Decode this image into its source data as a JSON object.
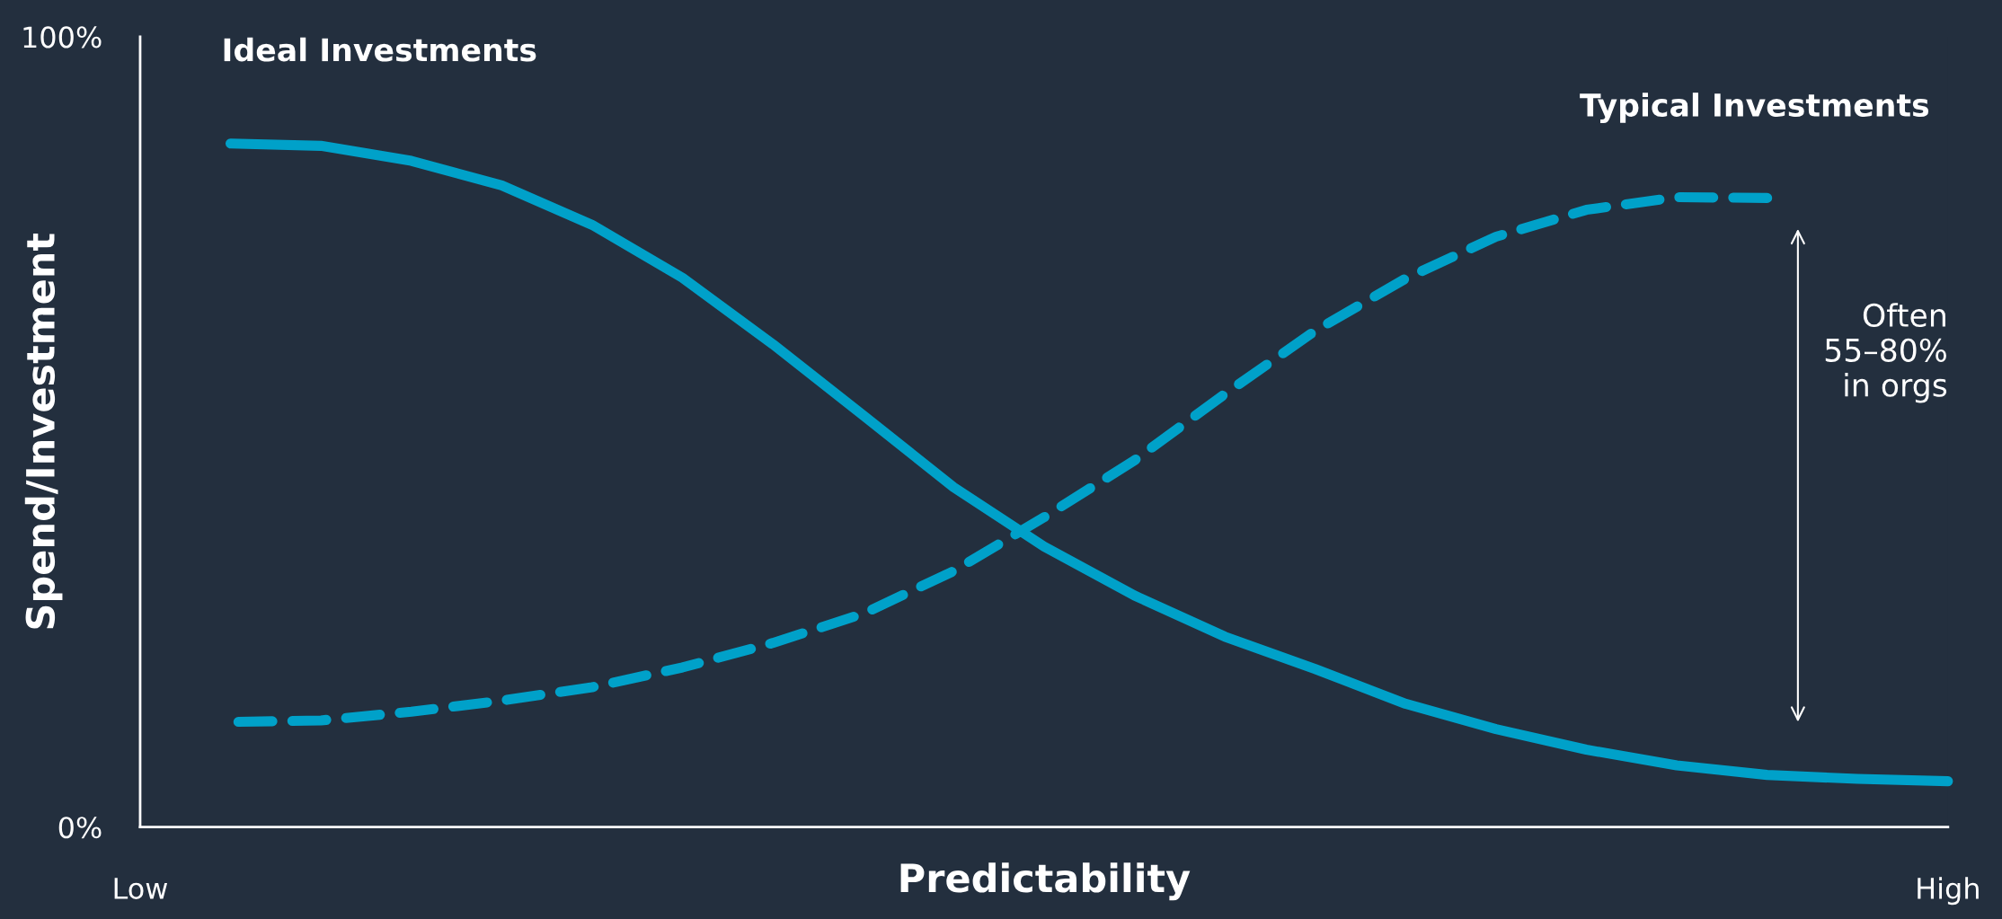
{
  "chart_data": {
    "type": "line",
    "xlabel": "Predictability",
    "ylabel": "Spend/Investment",
    "categories": [
      "Low",
      null,
      null,
      null,
      null,
      null,
      null,
      null,
      null,
      null,
      null,
      null,
      null,
      null,
      null,
      null,
      null,
      null,
      null,
      null,
      "High"
    ],
    "ylim": [
      0,
      100
    ],
    "yticks": [
      {
        "value": 0,
        "label": "0%"
      },
      {
        "value": 100,
        "label": "100%"
      }
    ],
    "grid": false,
    "legend": false,
    "marker": "none",
    "series": [
      {
        "name": "Ideal Investments",
        "color": "#00a1c9",
        "line_style": "solid",
        "values": [
          null,
          86.5,
          86.2,
          84.3,
          81.2,
          76.2,
          69.5,
          61.1,
          52.1,
          43.0,
          35.5,
          29.3,
          24.1,
          20.0,
          15.6,
          12.4,
          9.8,
          7.8,
          6.6,
          6.1,
          5.8
        ]
      },
      {
        "name": "Typical Investments",
        "color": "#00a1c9",
        "line_style": "dashed",
        "values": [
          null,
          13.3,
          13.5,
          14.6,
          16.0,
          17.7,
          20.2,
          23.3,
          27.0,
          32.4,
          39.2,
          46.4,
          54.8,
          62.8,
          69.4,
          74.7,
          78.1,
          79.7,
          79.6,
          null,
          null
        ]
      }
    ],
    "annotations": [
      "Often\n55–80%\nin orgs"
    ]
  }
}
